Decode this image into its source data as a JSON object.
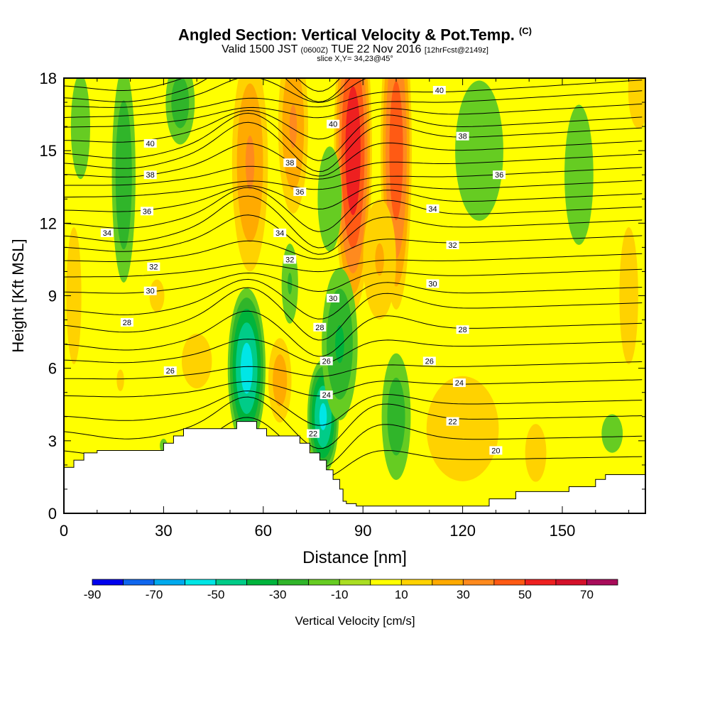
{
  "header": {
    "title": "Angled Section: Vertical Velocity & Pot.Temp.",
    "title_unit": "(C)",
    "valid_prefix": "Valid 1500 JST",
    "valid_utc": "(0600Z)",
    "valid_date": "TUE 22 Nov 2016",
    "forecast": "[12hrFcst@2149z]",
    "slice": "slice X,Y= 34,23@45°"
  },
  "chart_data": {
    "type": "heatmap",
    "title": "Angled Section: Vertical Velocity & Pot.Temp.",
    "xlabel": "Distance [nm]",
    "ylabel": "Height [Kft MSL]",
    "xlim": [
      0,
      175
    ],
    "ylim": [
      0,
      18
    ],
    "x_ticks": [
      0,
      30,
      60,
      90,
      120,
      150
    ],
    "y_ticks": [
      0,
      3,
      6,
      9,
      12,
      15,
      18
    ],
    "colorbar": {
      "label": "Vertical Velocity [cm/s]",
      "boundaries": [
        -90,
        -80,
        -70,
        -60,
        -50,
        -40,
        -30,
        -20,
        -10,
        0,
        10,
        20,
        30,
        40,
        50,
        60,
        70,
        80
      ],
      "tick_labels": [
        "-90",
        "-70",
        "-50",
        "-30",
        "-10",
        "10",
        "30",
        "50",
        "70"
      ],
      "colors": [
        "#0000ee",
        "#0f66ee",
        "#00aaee",
        "#00e6e6",
        "#00cc88",
        "#00b43c",
        "#30b52a",
        "#66cc22",
        "#aade22",
        "#ffff00",
        "#ffd200",
        "#ffaa00",
        "#ff8a1e",
        "#ff5a14",
        "#ee2020",
        "#d4102a",
        "#a80c5a",
        "#5a1482"
      ]
    },
    "terrain_kft": [
      [
        0,
        1.9
      ],
      [
        3,
        1.9
      ],
      [
        3,
        2.2
      ],
      [
        6,
        2.2
      ],
      [
        6,
        2.5
      ],
      [
        10,
        2.5
      ],
      [
        10,
        2.6
      ],
      [
        30,
        2.6
      ],
      [
        30,
        2.9
      ],
      [
        33,
        2.9
      ],
      [
        33,
        3.2
      ],
      [
        36,
        3.2
      ],
      [
        36,
        3.5
      ],
      [
        52,
        3.5
      ],
      [
        52,
        3.8
      ],
      [
        58,
        3.8
      ],
      [
        58,
        3.5
      ],
      [
        61,
        3.5
      ],
      [
        61,
        3.2
      ],
      [
        71,
        3.2
      ],
      [
        71,
        2.9
      ],
      [
        74,
        2.9
      ],
      [
        74,
        2.5
      ],
      [
        77,
        2.5
      ],
      [
        77,
        2.2
      ],
      [
        79,
        2.2
      ],
      [
        79,
        1.8
      ],
      [
        81,
        1.8
      ],
      [
        81,
        1.4
      ],
      [
        83,
        1.4
      ],
      [
        83,
        1.0
      ],
      [
        84,
        1.0
      ],
      [
        84,
        0.5
      ],
      [
        85,
        0.5
      ],
      [
        85,
        0.4
      ],
      [
        88,
        0.4
      ],
      [
        88,
        0.3
      ],
      [
        128,
        0.3
      ],
      [
        128,
        0.6
      ],
      [
        136,
        0.6
      ],
      [
        136,
        0.9
      ],
      [
        152,
        0.9
      ],
      [
        152,
        1.1
      ],
      [
        160,
        1.1
      ],
      [
        160,
        1.4
      ],
      [
        163,
        1.4
      ],
      [
        163,
        1.6
      ],
      [
        175,
        1.6
      ],
      [
        175,
        0
      ],
      [
        0,
        0
      ]
    ],
    "updrafts": [
      {
        "x": 87,
        "y": 15,
        "rx": 6,
        "ry": 7,
        "w": 55
      },
      {
        "x": 100,
        "y": 15,
        "rx": 5,
        "ry": 7,
        "w": 45
      },
      {
        "x": 56,
        "y": 14.5,
        "rx": 6,
        "ry": 5,
        "w": 30
      },
      {
        "x": 69,
        "y": 16,
        "rx": 5,
        "ry": 4,
        "w": 30
      },
      {
        "x": 95,
        "y": 10.5,
        "rx": 6,
        "ry": 3,
        "w": 20
      },
      {
        "x": 65,
        "y": 5.5,
        "rx": 4,
        "ry": 2,
        "w": 25
      },
      {
        "x": 120,
        "y": 3.5,
        "rx": 15,
        "ry": 3,
        "w": 15
      },
      {
        "x": 142,
        "y": 2.5,
        "rx": 4,
        "ry": 1.5,
        "w": 18
      },
      {
        "x": 17,
        "y": 5.5,
        "rx": 5,
        "ry": 2,
        "w": 10
      },
      {
        "x": 40,
        "y": 6.3,
        "rx": 8,
        "ry": 2,
        "w": 12
      },
      {
        "x": 3,
        "y": 9,
        "rx": 4,
        "ry": 5,
        "w": 12
      },
      {
        "x": 170,
        "y": 9,
        "rx": 5,
        "ry": 5,
        "w": 12
      },
      {
        "x": 173,
        "y": 17.5,
        "rx": 4,
        "ry": 2,
        "w": 18
      },
      {
        "x": 28,
        "y": 9,
        "rx": 10,
        "ry": 3,
        "w": 10
      }
    ],
    "downdrafts": [
      {
        "x": 55,
        "y": 6,
        "rx": 6,
        "ry": 3.5,
        "w": -52
      },
      {
        "x": 78,
        "y": 4,
        "rx": 5,
        "ry": 2.5,
        "w": -50
      },
      {
        "x": 83,
        "y": 7,
        "rx": 6,
        "ry": 3.5,
        "w": -30
      },
      {
        "x": 100,
        "y": 4,
        "rx": 5,
        "ry": 3,
        "w": -25
      },
      {
        "x": 18,
        "y": 14,
        "rx": 4,
        "ry": 5,
        "w": -28
      },
      {
        "x": 35,
        "y": 17,
        "rx": 5,
        "ry": 2,
        "w": -25
      },
      {
        "x": 80,
        "y": 13,
        "rx": 5,
        "ry": 3,
        "w": -15
      },
      {
        "x": 125,
        "y": 15,
        "rx": 10,
        "ry": 4,
        "w": -15
      },
      {
        "x": 155,
        "y": 14,
        "rx": 6,
        "ry": 4,
        "w": -15
      },
      {
        "x": 68,
        "y": 9.5,
        "rx": 3,
        "ry": 2,
        "w": -20
      },
      {
        "x": 165,
        "y": 3.3,
        "rx": 4,
        "ry": 1,
        "w": -18
      },
      {
        "x": 5,
        "y": 16,
        "rx": 4,
        "ry": 3,
        "w": -15
      },
      {
        "x": 30,
        "y": 2.8,
        "rx": 2,
        "ry": 0.5,
        "w": -12
      }
    ],
    "isentrope_base_kft": [
      1.9,
      2.7,
      3.5,
      4.1,
      4.9,
      5.6,
      6.4,
      7.1,
      7.9,
      8.5,
      9.2,
      9.8,
      10.5,
      11.1,
      11.6,
      12.1,
      12.6,
      13.1,
      13.6,
      14.1,
      14.6,
      15.0,
      15.5,
      16.0,
      16.4,
      16.9,
      17.3,
      17.8
    ],
    "contour_labels": [
      {
        "text": "40",
        "x": 26,
        "y": 15.3
      },
      {
        "text": "40",
        "x": 81,
        "y": 16.1
      },
      {
        "text": "40",
        "x": 113,
        "y": 17.5
      },
      {
        "text": "38",
        "x": 26,
        "y": 14.0
      },
      {
        "text": "38",
        "x": 68,
        "y": 14.5
      },
      {
        "text": "38",
        "x": 120,
        "y": 15.6
      },
      {
        "text": "36",
        "x": 25,
        "y": 12.5
      },
      {
        "text": "36",
        "x": 71,
        "y": 13.3
      },
      {
        "text": "36",
        "x": 131,
        "y": 14.0
      },
      {
        "text": "34",
        "x": 13,
        "y": 11.6
      },
      {
        "text": "34",
        "x": 65,
        "y": 11.6
      },
      {
        "text": "34",
        "x": 111,
        "y": 12.6
      },
      {
        "text": "32",
        "x": 27,
        "y": 10.2
      },
      {
        "text": "32",
        "x": 68,
        "y": 10.5
      },
      {
        "text": "32",
        "x": 117,
        "y": 11.1
      },
      {
        "text": "30",
        "x": 26,
        "y": 9.2
      },
      {
        "text": "30",
        "x": 81,
        "y": 8.9
      },
      {
        "text": "30",
        "x": 111,
        "y": 9.5
      },
      {
        "text": "28",
        "x": 19,
        "y": 7.9
      },
      {
        "text": "28",
        "x": 77,
        "y": 7.7
      },
      {
        "text": "28",
        "x": 120,
        "y": 7.6
      },
      {
        "text": "26",
        "x": 32,
        "y": 5.9
      },
      {
        "text": "26",
        "x": 79,
        "y": 6.3
      },
      {
        "text": "26",
        "x": 110,
        "y": 6.3
      },
      {
        "text": "24",
        "x": 79,
        "y": 4.9
      },
      {
        "text": "24",
        "x": 119,
        "y": 5.4
      },
      {
        "text": "22",
        "x": 75,
        "y": 3.3
      },
      {
        "text": "22",
        "x": 117,
        "y": 3.8
      },
      {
        "text": "20",
        "x": 130,
        "y": 2.6
      }
    ]
  }
}
